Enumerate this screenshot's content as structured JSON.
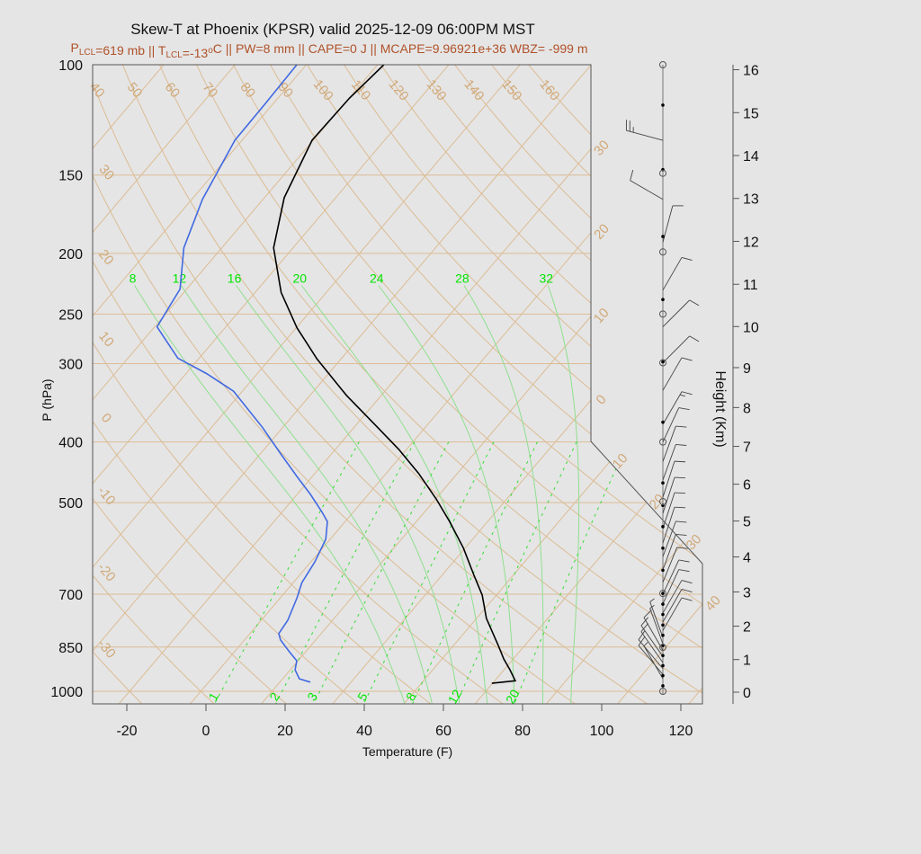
{
  "chart_data": {
    "type": "line",
    "title": "Skew-T at Phoenix (KPSR) valid 2025-12-09 06:00PM MST",
    "subtitle": [
      {
        "t": "P"
      },
      {
        "sub": "LCL"
      },
      {
        "t": "=619 mb || T"
      },
      {
        "sub": "LCL"
      },
      {
        "t": "=-13"
      },
      {
        "sup": "o"
      },
      {
        "t": "C || PW=8 mm || CAPE=0 J || MCAPE=9.96921e+36 WBZ= -999 m"
      }
    ],
    "xlabel": "Temperature (F)",
    "ylabel": "P (hPa)",
    "y2label": "Height (Km)",
    "xticks": [
      -20,
      0,
      20,
      40,
      60,
      80,
      100,
      120
    ],
    "yticks": [
      100,
      150,
      200,
      250,
      300,
      400,
      500,
      700,
      850,
      1000
    ],
    "y2ticks": [
      0,
      1,
      2,
      3,
      4,
      5,
      6,
      7,
      8,
      9,
      10,
      11,
      12,
      13,
      14,
      15,
      16
    ],
    "y_scale": "log",
    "ylim": [
      1047,
      100
    ],
    "skew": "45-degree skewed isotherms",
    "isobars": [
      150,
      200,
      250,
      300,
      400,
      500,
      700,
      850,
      1000
    ],
    "isotherms_c": [
      -30,
      -20,
      -10,
      0,
      10,
      20,
      30,
      40
    ],
    "dry_adiabats_c": [
      -30,
      -20,
      -10,
      0,
      10,
      20,
      30,
      40,
      50,
      60,
      70,
      80,
      90,
      100,
      110,
      120,
      130,
      140,
      150,
      160
    ],
    "moist_adiabats_c": [
      8,
      12,
      16,
      20,
      24,
      28,
      32
    ],
    "mixing_ratio_gkg": [
      1,
      2,
      3,
      5,
      8,
      12,
      20
    ],
    "series": [
      {
        "kind": "temperature",
        "color": "#000000",
        "units": "F",
        "p": [
          971,
          962,
          924,
          888,
          845,
          765,
          702,
          653,
          591,
          536,
          493,
          449,
          411,
          379,
          337,
          295,
          263,
          231,
          196,
          163,
          132,
          113,
          100
        ],
        "t": [
          67.8,
          73.2,
          69.5,
          65.6,
          61.3,
          52.5,
          46.4,
          40.1,
          31.6,
          22.4,
          14.1,
          4.2,
          -6.0,
          -16.1,
          -30.8,
          -46.0,
          -57.8,
          -69.4,
          -80.9,
          -89.0,
          -94.3,
          -93.9,
          -92.4
        ]
      },
      {
        "kind": "dewpoint",
        "color": "#4169e1",
        "units": "F",
        "p": [
          967,
          955,
          924,
          894,
          865,
          828,
          809,
          770,
          709,
          671,
          622,
          572,
          536,
          518,
          485,
          454,
          418,
          379,
          332,
          311,
          294,
          262,
          228,
          196,
          164,
          132,
          115,
          100
        ],
        "t": [
          21.7,
          18.2,
          15.2,
          13.7,
          9.9,
          5.1,
          3.3,
          2.7,
          0.2,
          -1.8,
          -3.0,
          -5.1,
          -8.5,
          -11.8,
          -18.6,
          -25.9,
          -34.8,
          -45.2,
          -60.2,
          -70.9,
          -81.4,
          -93.4,
          -95.7,
          -103.6,
          -109.3,
          -113.8,
          -114.0,
          -114.4
        ]
      }
    ],
    "winds": [
      {
        "p": 132,
        "dir": 285,
        "spd": 25
      },
      {
        "p": 164,
        "dir": 300,
        "spd": 10
      },
      {
        "p": 192,
        "dir": 15,
        "spd": 10
      },
      {
        "p": 229,
        "dir": 30,
        "spd": 10
      },
      {
        "p": 262,
        "dir": 45,
        "spd": 10
      },
      {
        "p": 299,
        "dir": 45,
        "spd": 10
      },
      {
        "p": 331,
        "dir": 30,
        "spd": 10
      },
      {
        "p": 375,
        "dir": 30,
        "spd": 15
      },
      {
        "p": 400,
        "dir": 25,
        "spd": 10
      },
      {
        "p": 430,
        "dir": 20,
        "spd": 10
      },
      {
        "p": 460,
        "dir": 20,
        "spd": 10
      },
      {
        "p": 490,
        "dir": 18,
        "spd": 10
      },
      {
        "p": 520,
        "dir": 18,
        "spd": 10
      },
      {
        "p": 550,
        "dir": 18,
        "spd": 10
      },
      {
        "p": 580,
        "dir": 18,
        "spd": 10
      },
      {
        "p": 610,
        "dir": 20,
        "spd": 10
      },
      {
        "p": 640,
        "dir": 20,
        "spd": 10
      },
      {
        "p": 670,
        "dir": 22,
        "spd": 10
      },
      {
        "p": 700,
        "dir": 25,
        "spd": 10
      },
      {
        "p": 725,
        "dir": 25,
        "spd": 10
      },
      {
        "p": 750,
        "dir": 30,
        "spd": 10
      },
      {
        "p": 775,
        "dir": 30,
        "spd": 10
      },
      {
        "p": 800,
        "dir": 30,
        "spd": 10
      },
      {
        "p": 820,
        "dir": 340,
        "spd": 5
      },
      {
        "p": 840,
        "dir": 340,
        "spd": 5
      },
      {
        "p": 860,
        "dir": 330,
        "spd": 10
      },
      {
        "p": 880,
        "dir": 325,
        "spd": 10
      },
      {
        "p": 900,
        "dir": 325,
        "spd": 10
      },
      {
        "p": 920,
        "dir": 320,
        "spd": 10
      },
      {
        "p": 940,
        "dir": 320,
        "spd": 10
      },
      {
        "p": 955,
        "dir": 330,
        "spd": 5
      }
    ],
    "wind_level_dots": [
      116,
      147,
      188,
      237,
      298,
      372,
      465,
      505,
      546,
      591,
      641,
      698,
      726,
      754,
      784,
      814,
      845,
      877,
      910,
      944,
      980
    ],
    "wind_level_circles": [
      100,
      149,
      199,
      250,
      299,
      400,
      498,
      698,
      851,
      1000
    ],
    "colors": {
      "background": "#e5e5e5",
      "grid": "#dcbc94",
      "moist": "#8fdf8f",
      "mixing": "#33dd33",
      "label_green": "#00e600",
      "subtitle": "#b0522a"
    }
  }
}
